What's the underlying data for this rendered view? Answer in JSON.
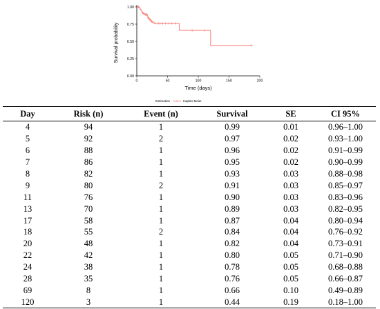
{
  "chart_data": {
    "type": "line",
    "step": true,
    "title": "",
    "xlabel": "Time (days)",
    "ylabel": "Survival probability",
    "xlim": [
      0,
      200
    ],
    "ylim": [
      0,
      1
    ],
    "x_ticks": [
      0,
      50,
      100,
      150,
      200
    ],
    "y_ticks": [
      0.0,
      0.25,
      0.5,
      0.75,
      1.0
    ],
    "x_tick_labels": [
      "0",
      "50",
      "100",
      "150",
      "200"
    ],
    "y_tick_labels": [
      "0.00",
      "0.25",
      "0.50",
      "0.75",
      "1.00"
    ],
    "legend": {
      "title": "Estimation",
      "entries": [
        "Kaplan-Meier"
      ],
      "position": "bottom"
    },
    "grid": false,
    "color": "#f8766d",
    "series": [
      {
        "name": "Kaplan-Meier",
        "x": [
          0,
          4,
          5,
          6,
          7,
          8,
          9,
          11,
          13,
          17,
          18,
          20,
          22,
          24,
          28,
          69,
          120,
          188
        ],
        "y": [
          1.0,
          0.99,
          0.97,
          0.96,
          0.95,
          0.93,
          0.91,
          0.9,
          0.89,
          0.87,
          0.84,
          0.82,
          0.8,
          0.78,
          0.76,
          0.66,
          0.44,
          0.44
        ]
      }
    ],
    "censored": [
      {
        "x": 2,
        "y": 1.0
      },
      {
        "x": 3,
        "y": 1.0
      },
      {
        "x": 10,
        "y": 0.91
      },
      {
        "x": 12,
        "y": 0.9
      },
      {
        "x": 14,
        "y": 0.89
      },
      {
        "x": 15,
        "y": 0.89
      },
      {
        "x": 16,
        "y": 0.89
      },
      {
        "x": 19,
        "y": 0.84
      },
      {
        "x": 21,
        "y": 0.82
      },
      {
        "x": 23,
        "y": 0.8
      },
      {
        "x": 25,
        "y": 0.78
      },
      {
        "x": 30,
        "y": 0.76
      },
      {
        "x": 35,
        "y": 0.76
      },
      {
        "x": 38,
        "y": 0.76
      },
      {
        "x": 42,
        "y": 0.76
      },
      {
        "x": 47,
        "y": 0.76
      },
      {
        "x": 52,
        "y": 0.76
      },
      {
        "x": 57,
        "y": 0.76
      },
      {
        "x": 63,
        "y": 0.76
      },
      {
        "x": 90,
        "y": 0.66
      },
      {
        "x": 110,
        "y": 0.66
      },
      {
        "x": 186,
        "y": 0.44
      }
    ]
  },
  "table": {
    "headers": [
      "Day",
      "Risk (n)",
      "Event (n)",
      "Survival",
      "SE",
      "CI 95%"
    ],
    "rows": [
      [
        "4",
        "94",
        "1",
        "0.99",
        "0.01",
        "0.96–1.00"
      ],
      [
        "5",
        "92",
        "2",
        "0.97",
        "0.02",
        "0.93–1.00"
      ],
      [
        "6",
        "88",
        "1",
        "0.96",
        "0.02",
        "0.91–0.99"
      ],
      [
        "7",
        "86",
        "1",
        "0.95",
        "0.02",
        "0.90–0.99"
      ],
      [
        "8",
        "82",
        "1",
        "0.93",
        "0.03",
        "0.88–0.98"
      ],
      [
        "9",
        "80",
        "2",
        "0.91",
        "0.03",
        "0.85–0.97"
      ],
      [
        "11",
        "76",
        "1",
        "0.90",
        "0.03",
        "0.83–0.96"
      ],
      [
        "13",
        "70",
        "1",
        "0.89",
        "0.03",
        "0.82–0.95"
      ],
      [
        "17",
        "58",
        "1",
        "0.87",
        "0.04",
        "0.80–0.94"
      ],
      [
        "18",
        "55",
        "2",
        "0.84",
        "0.04",
        "0.76–0.92"
      ],
      [
        "20",
        "48",
        "1",
        "0.82",
        "0.04",
        "0.73–0.91"
      ],
      [
        "22",
        "42",
        "1",
        "0.80",
        "0.05",
        "0.71–0.90"
      ],
      [
        "24",
        "38",
        "1",
        "0.78",
        "0.05",
        "0.68–0.88"
      ],
      [
        "28",
        "35",
        "1",
        "0.76",
        "0.05",
        "0.66–0.87"
      ],
      [
        "69",
        "8",
        "1",
        "0.66",
        "0.10",
        "0.49–0.89"
      ],
      [
        "120",
        "3",
        "1",
        "0.44",
        "0.19",
        "0.18–1.00"
      ]
    ]
  }
}
